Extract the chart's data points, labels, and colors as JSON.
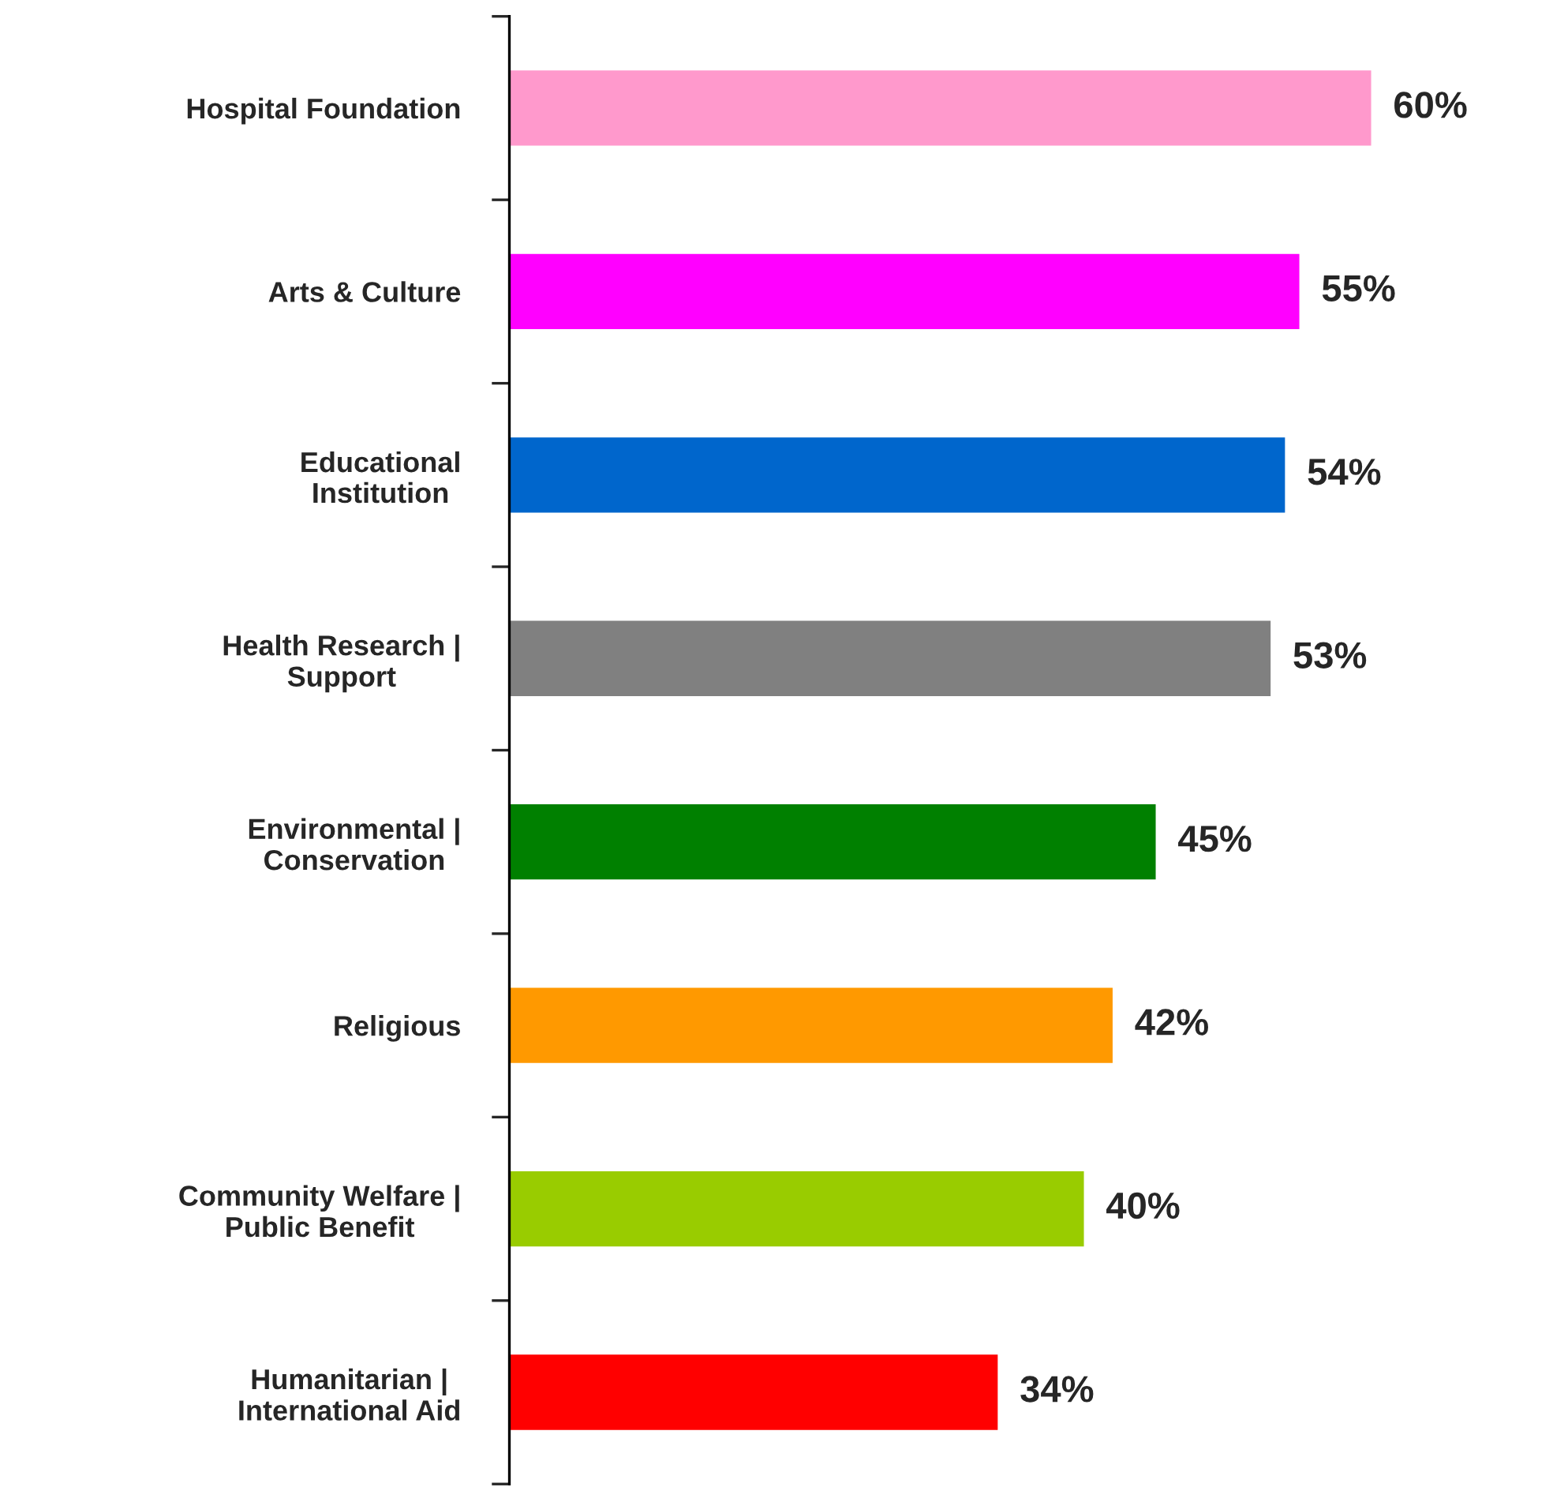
{
  "chart_data": {
    "type": "bar",
    "orientation": "horizontal",
    "categories": [
      "Hospital Foundation",
      "Arts & Culture",
      "Educational\nInstitution",
      "Health Research |\nSupport",
      "Environmental |\nConservation",
      "Religious",
      "Community Welfare |\nPublic Benefit",
      "Humanitarian |\nInternational Aid"
    ],
    "values": [
      60,
      55,
      54,
      53,
      45,
      42,
      40,
      34
    ],
    "colors": [
      "#ff99cc",
      "#ff00ff",
      "#0066cc",
      "#808080",
      "#008000",
      "#ff9900",
      "#99cc00",
      "#ff0000"
    ],
    "value_labels": [
      "60%",
      "55%",
      "54%",
      "53%",
      "45%",
      "42%",
      "40%",
      "34%"
    ],
    "grid": false,
    "legend": false
  }
}
